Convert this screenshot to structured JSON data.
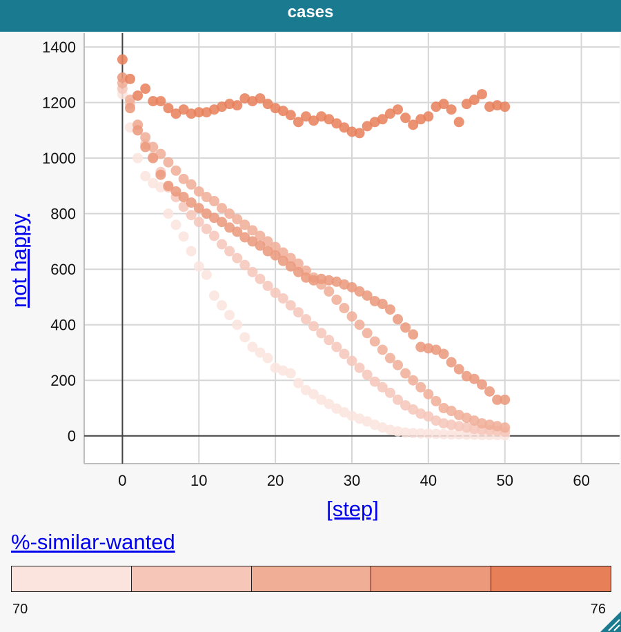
{
  "header": {
    "title": "cases"
  },
  "chart_data": {
    "type": "scatter",
    "xlabel": "[step]",
    "ylabel": "not happy",
    "xlim": [
      -5,
      65
    ],
    "ylim": [
      -100,
      1450
    ],
    "x_ticks": [
      0,
      10,
      20,
      30,
      40,
      50,
      60
    ],
    "y_ticks": [
      0,
      200,
      400,
      600,
      800,
      1000,
      1200,
      1400
    ],
    "grid": true,
    "color_legend": {
      "variable": "%-similar-wanted",
      "min": "70",
      "max": "76",
      "colors": [
        "#fbe4de",
        "#f6c6b8",
        "#f0ae97",
        "#eb987b",
        "#e77f59"
      ]
    },
    "series": [
      {
        "similar_wanted": 70,
        "color": "#fbe4de",
        "x": [
          0,
          1,
          2,
          3,
          4,
          5,
          6,
          7,
          8,
          9,
          10,
          11,
          12,
          13,
          14,
          15,
          16,
          17,
          18,
          19,
          20,
          21,
          22,
          23,
          24,
          25,
          26,
          27,
          28,
          29,
          30,
          31,
          32,
          33,
          34,
          35,
          36,
          37,
          38,
          39,
          40,
          41,
          42,
          43,
          44,
          45,
          46,
          47,
          48,
          49,
          50
        ],
        "y": [
          1230,
          1110,
          1000,
          935,
          910,
          895,
          800,
          760,
          718,
          665,
          610,
          580,
          505,
          470,
          435,
          400,
          355,
          320,
          300,
          280,
          245,
          235,
          225,
          190,
          165,
          150,
          130,
          115,
          98,
          85,
          72,
          62,
          52,
          40,
          30,
          22,
          16,
          12,
          10,
          9,
          8,
          7,
          6,
          5,
          5,
          4,
          4,
          3,
          3,
          3,
          2
        ]
      },
      {
        "similar_wanted": 71,
        "color": "#f6c6b8",
        "x": [
          0,
          1,
          2,
          3,
          4,
          5,
          6,
          7,
          8,
          9,
          10,
          11,
          12,
          13,
          14,
          15,
          16,
          17,
          18,
          19,
          20,
          21,
          22,
          23,
          24,
          25,
          26,
          27,
          28,
          29,
          30,
          31,
          32,
          33,
          34,
          35,
          36,
          37,
          38,
          39,
          40,
          41,
          42,
          43,
          44,
          45,
          46,
          47,
          48,
          49,
          50
        ],
        "y": [
          1250,
          1195,
          1120,
          1050,
          1005,
          950,
          895,
          860,
          825,
          795,
          770,
          745,
          720,
          690,
          665,
          640,
          615,
          590,
          565,
          540,
          515,
          495,
          470,
          445,
          420,
          395,
          370,
          345,
          320,
          295,
          270,
          245,
          220,
          195,
          175,
          155,
          130,
          110,
          95,
          80,
          70,
          55,
          45,
          40,
          35,
          30,
          25,
          22,
          20,
          18,
          15
        ]
      },
      {
        "similar_wanted": 72,
        "color": "#f0ae97",
        "x": [
          0,
          1,
          2,
          3,
          4,
          5,
          6,
          7,
          8,
          9,
          10,
          11,
          12,
          13,
          14,
          15,
          16,
          17,
          18,
          19,
          20,
          21,
          22,
          23,
          24,
          25,
          26,
          27,
          28,
          29,
          30,
          31,
          32,
          33,
          34,
          35,
          36,
          37,
          38,
          39,
          40,
          41,
          42,
          43,
          44,
          45,
          46,
          47,
          48,
          49,
          50
        ],
        "y": [
          1270,
          1210,
          1120,
          1075,
          1040,
          1015,
          985,
          955,
          925,
          905,
          880,
          860,
          845,
          820,
          800,
          780,
          760,
          740,
          720,
          700,
          680,
          660,
          640,
          620,
          595,
          570,
          545,
          520,
          490,
          460,
          430,
          400,
          370,
          340,
          310,
          280,
          255,
          225,
          200,
          175,
          150,
          125,
          100,
          90,
          75,
          65,
          55,
          45,
          40,
          35,
          30
        ]
      },
      {
        "similar_wanted": 74,
        "color": "#eb987b",
        "x": [
          0,
          1,
          2,
          3,
          4,
          5,
          6,
          7,
          8,
          9,
          10,
          11,
          12,
          13,
          14,
          15,
          16,
          17,
          18,
          19,
          20,
          21,
          22,
          23,
          24,
          25,
          26,
          27,
          28,
          29,
          30,
          31,
          32,
          33,
          34,
          35,
          36,
          37,
          38,
          39,
          40,
          41,
          42,
          43,
          44,
          45,
          46,
          47,
          48,
          49,
          50
        ],
        "y": [
          1290,
          1180,
          1100,
          1040,
          1000,
          940,
          900,
          880,
          860,
          840,
          820,
          800,
          785,
          770,
          750,
          735,
          715,
          700,
          685,
          665,
          650,
          630,
          610,
          590,
          570,
          560,
          565,
          560,
          555,
          545,
          535,
          520,
          505,
          485,
          475,
          455,
          420,
          390,
          365,
          320,
          315,
          310,
          295,
          265,
          240,
          215,
          205,
          185,
          160,
          130,
          130
        ]
      },
      {
        "similar_wanted": 76,
        "color": "#e77f59",
        "x": [
          0,
          1,
          2,
          3,
          4,
          5,
          6,
          7,
          8,
          9,
          10,
          11,
          12,
          13,
          14,
          15,
          16,
          17,
          18,
          19,
          20,
          21,
          22,
          23,
          24,
          25,
          26,
          27,
          28,
          29,
          30,
          31,
          32,
          33,
          34,
          35,
          36,
          37,
          38,
          39,
          40,
          41,
          42,
          43,
          44,
          45,
          46,
          47,
          48,
          49,
          50
        ],
        "y": [
          1355,
          1285,
          1225,
          1250,
          1205,
          1205,
          1180,
          1160,
          1175,
          1160,
          1165,
          1165,
          1175,
          1185,
          1195,
          1190,
          1215,
          1205,
          1215,
          1195,
          1180,
          1170,
          1155,
          1130,
          1150,
          1135,
          1150,
          1140,
          1125,
          1110,
          1095,
          1090,
          1115,
          1130,
          1140,
          1160,
          1175,
          1145,
          1120,
          1140,
          1150,
          1185,
          1195,
          1175,
          1130,
          1195,
          1210,
          1230,
          1185,
          1190,
          1185
        ]
      }
    ]
  }
}
